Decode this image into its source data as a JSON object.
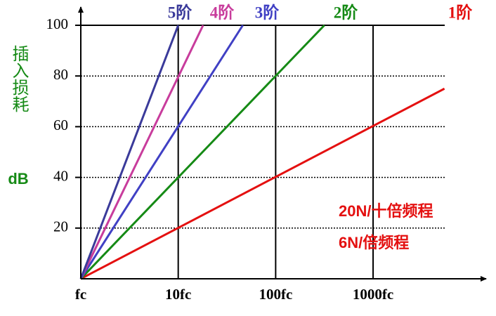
{
  "chart_data": {
    "type": "line",
    "y_label": "插入损耗",
    "y_unit": "dB",
    "xlog": true,
    "xlim": [
      1,
      14000
    ],
    "xticks": [
      {
        "value": 1,
        "label": "fc"
      },
      {
        "value": 10,
        "label": "10fc"
      },
      {
        "value": 100,
        "label": "100fc"
      },
      {
        "value": 1000,
        "label": "1000fc"
      }
    ],
    "ylim": [
      0,
      100
    ],
    "yticks": [
      20,
      40,
      60,
      80,
      100
    ],
    "grid": true,
    "series": [
      {
        "name": "1阶",
        "color": "#e41010",
        "x": [
          1,
          5400
        ],
        "values": [
          0,
          75
        ]
      },
      {
        "name": "2阶",
        "color": "#158a15",
        "x": [
          1,
          316
        ],
        "values": [
          0,
          100
        ]
      },
      {
        "name": "3阶",
        "color": "#4040c4",
        "x": [
          1,
          46
        ],
        "values": [
          0,
          100
        ]
      },
      {
        "name": "4阶",
        "color": "#c83c9c",
        "x": [
          1,
          18
        ],
        "values": [
          0,
          100
        ]
      },
      {
        "name": "5阶",
        "color": "#3a3a9a",
        "x": [
          1,
          10
        ],
        "values": [
          0,
          100
        ]
      }
    ],
    "annotations": [
      "20N/十倍频程",
      "6N/倍频程"
    ]
  }
}
